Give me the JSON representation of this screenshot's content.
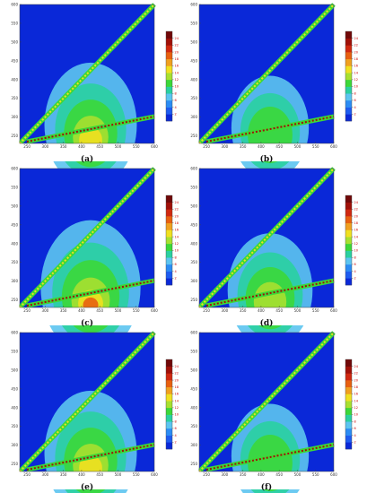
{
  "charts": [
    {
      "type": "contour",
      "label": "(a)",
      "xlim": [
        230,
        600
      ],
      "ylim": [
        230,
        600
      ],
      "xticks": [
        250,
        300,
        350,
        400,
        450,
        500,
        550,
        600
      ],
      "yticks": [
        250,
        300,
        350,
        400,
        450,
        500,
        550,
        600
      ],
      "colorbar_lim": [
        0,
        26
      ],
      "colorbar_ticks": [
        2,
        4,
        6,
        8,
        10,
        12,
        14,
        16,
        18,
        20,
        22,
        24
      ]
    },
    {
      "type": "contour",
      "label": "(b)",
      "xlim": [
        230,
        600
      ],
      "ylim": [
        230,
        600
      ],
      "xticks": [
        250,
        300,
        350,
        400,
        450,
        500,
        550,
        600
      ],
      "yticks": [
        250,
        300,
        350,
        400,
        450,
        500,
        550,
        600
      ],
      "colorbar_lim": [
        0,
        26
      ],
      "colorbar_ticks": [
        2,
        4,
        6,
        8,
        10,
        12,
        14,
        16,
        18,
        20,
        22,
        24
      ]
    },
    {
      "type": "contour",
      "label": "(c)",
      "xlim": [
        230,
        600
      ],
      "ylim": [
        230,
        600
      ],
      "xticks": [
        250,
        300,
        350,
        400,
        450,
        500,
        550,
        600
      ],
      "yticks": [
        250,
        300,
        350,
        400,
        450,
        500,
        550,
        600
      ],
      "colorbar_lim": [
        0,
        26
      ],
      "colorbar_ticks": [
        2,
        4,
        6,
        8,
        10,
        12,
        14,
        16,
        18,
        20,
        22,
        24
      ]
    },
    {
      "type": "contour",
      "label": "(d)",
      "xlim": [
        230,
        600
      ],
      "ylim": [
        230,
        600
      ],
      "xticks": [
        250,
        300,
        350,
        400,
        450,
        500,
        550,
        600
      ],
      "yticks": [
        250,
        300,
        350,
        400,
        450,
        500,
        550,
        600
      ],
      "colorbar_lim": [
        0,
        26
      ],
      "colorbar_ticks": [
        2,
        4,
        6,
        8,
        10,
        12,
        14,
        16,
        18,
        20,
        22,
        24
      ]
    },
    {
      "type": "contour",
      "label": "(e)",
      "xlim": [
        230,
        600
      ],
      "ylim": [
        230,
        600
      ],
      "xticks": [
        250,
        300,
        350,
        400,
        450,
        500,
        550,
        600
      ],
      "yticks": [
        250,
        300,
        350,
        400,
        450,
        500,
        550,
        600
      ],
      "colorbar_lim": [
        0,
        26
      ],
      "colorbar_ticks": [
        2,
        4,
        6,
        8,
        10,
        12,
        14,
        16,
        18,
        20,
        22,
        24
      ]
    },
    {
      "type": "contour",
      "label": "(f)",
      "xlim": [
        230,
        600
      ],
      "ylim": [
        230,
        600
      ],
      "xticks": [
        250,
        300,
        350,
        400,
        450,
        500,
        550,
        600
      ],
      "yticks": [
        250,
        300,
        350,
        400,
        450,
        500,
        550,
        600
      ],
      "colorbar_lim": [
        0,
        26
      ],
      "colorbar_ticks": [
        2,
        4,
        6,
        8,
        10,
        12,
        14,
        16,
        18,
        20,
        22,
        24
      ]
    }
  ],
  "colormap": [
    "#0a28d8",
    "#1e5cf0",
    "#2c8cf4",
    "#5cc4f0",
    "#2ad0a0",
    "#3cd838",
    "#a8e030",
    "#f0e020",
    "#f0a020",
    "#e86010",
    "#d02810",
    "#a01008",
    "#700808"
  ]
}
